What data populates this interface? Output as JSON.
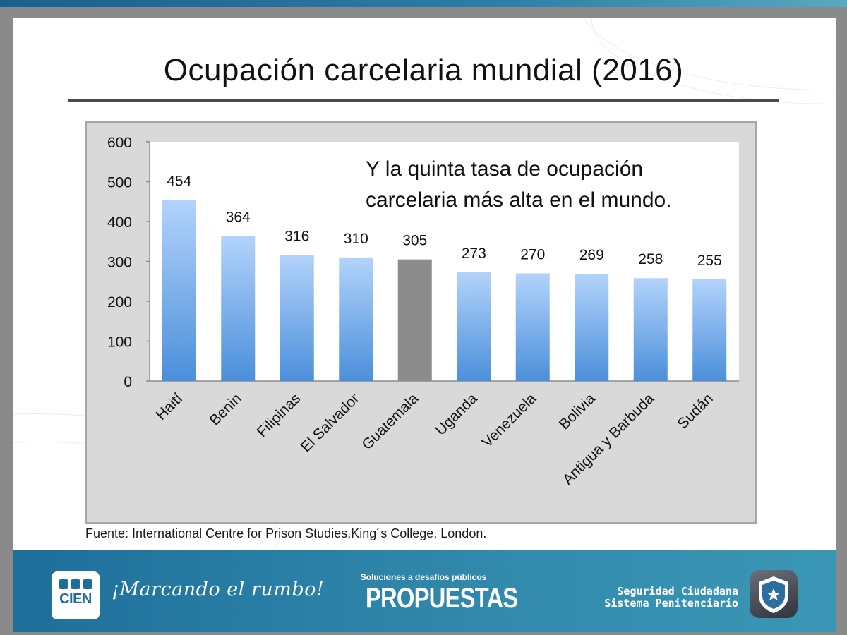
{
  "slide": {
    "title": "Ocupación carcelaria mundial (2016)",
    "note_line1": "Y la quinta tasa de ocupación",
    "note_line2": "carcelaria más alta en el mundo.",
    "source": "Fuente: International Centre for Prison Studies,King´s College, London."
  },
  "footer": {
    "logo_text": "CIEN",
    "slogan": "¡Marcando el rumbo!",
    "kicker": "Soluciones a desafíos públicos",
    "program_name": "PROPUESTAS",
    "program_line1": "Seguridad Ciudadana",
    "program_line2": "Sistema Penitenciario"
  },
  "chart_data": {
    "type": "bar",
    "categories": [
      "Haití",
      "Benin",
      "Filipinas",
      "El Salvador",
      "Guatemala",
      "Uganda",
      "Venezuela",
      "Bolivia",
      "Antigua y Barbuda",
      "Sudán"
    ],
    "values": [
      454,
      364,
      316,
      310,
      305,
      273,
      270,
      269,
      258,
      255
    ],
    "data_labels": [
      "454",
      "364",
      "316",
      "310",
      "305",
      "273",
      "270",
      "269",
      "258",
      "255"
    ],
    "highlight_category": "Guatemala",
    "ylim": [
      0,
      600
    ],
    "yticks": [
      0,
      100,
      200,
      300,
      400,
      500,
      600
    ],
    "grid": false,
    "colors": {
      "bar_top": "#b3d3fb",
      "bar_bottom": "#4b8fdb",
      "highlight": "#8c8c8c",
      "frame_bg": "#d9d9d9",
      "plot_bg": "#ffffff"
    }
  }
}
